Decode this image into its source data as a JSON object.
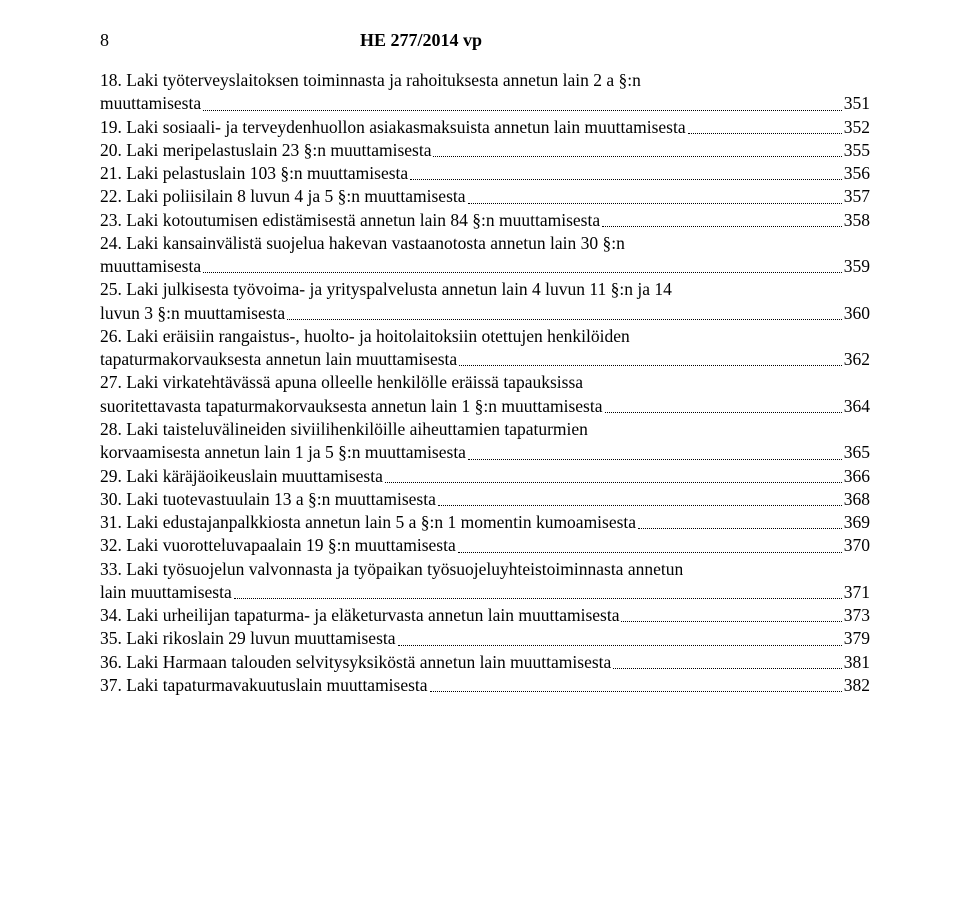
{
  "header": {
    "page_number": "8",
    "doc_title": "HE 277/2014 vp"
  },
  "toc": [
    {
      "lines": [
        "18. Laki työterveyslaitoksen toiminnasta ja rahoituksesta annetun lain 2 a §:n",
        "muuttamisesta"
      ],
      "page": "351"
    },
    {
      "lines": [
        "19. Laki sosiaali- ja terveydenhuollon asiakasmaksuista annetun lain muuttamisesta"
      ],
      "page": "352"
    },
    {
      "lines": [
        "20. Laki meripelastuslain 23 §:n muuttamisesta"
      ],
      "page": "355"
    },
    {
      "lines": [
        "21. Laki pelastuslain 103 §:n muuttamisesta"
      ],
      "page": "356"
    },
    {
      "lines": [
        "22. Laki poliisilain 8 luvun 4 ja 5 §:n muuttamisesta"
      ],
      "page": "357"
    },
    {
      "lines": [
        "23. Laki kotoutumisen edistämisestä annetun lain 84 §:n muuttamisesta"
      ],
      "page": "358"
    },
    {
      "lines": [
        "24. Laki kansainvälistä suojelua hakevan vastaanotosta annetun lain 30 §:n",
        "muuttamisesta"
      ],
      "page": "359"
    },
    {
      "lines": [
        "25. Laki julkisesta työvoima- ja yrityspalvelusta annetun lain 4 luvun 11 §:n ja 14",
        "luvun 3 §:n muuttamisesta"
      ],
      "page": "360"
    },
    {
      "lines": [
        "26. Laki eräisiin rangaistus-, huolto- ja hoitolaitoksiin otettujen henkilöiden",
        "tapaturmakorvauksesta annetun lain muuttamisesta"
      ],
      "page": "362"
    },
    {
      "lines": [
        "27. Laki virkatehtävässä apuna olleelle henkilölle eräissä tapauksissa",
        "suoritettavasta tapaturmakorvauksesta annetun lain 1 §:n muuttamisesta"
      ],
      "page": "364"
    },
    {
      "lines": [
        "28. Laki taisteluvälineiden siviilihenkilöille aiheuttamien tapaturmien",
        "korvaamisesta annetun lain 1 ja 5 §:n muuttamisesta"
      ],
      "page": "365"
    },
    {
      "lines": [
        "29. Laki käräjäoikeuslain muuttamisesta"
      ],
      "page": "366"
    },
    {
      "lines": [
        "30. Laki tuotevastuulain 13 a §:n muuttamisesta"
      ],
      "page": "368"
    },
    {
      "lines": [
        "31. Laki edustajanpalkkiosta annetun lain 5 a §:n 1 momentin kumoamisesta"
      ],
      "page": "369"
    },
    {
      "lines": [
        "32. Laki vuorotteluvapaalain 19 §:n muuttamisesta"
      ],
      "page": "370"
    },
    {
      "lines": [
        "33. Laki työsuojelun valvonnasta ja työpaikan työsuojeluyhteistoiminnasta annetun",
        "lain muuttamisesta"
      ],
      "page": "371"
    },
    {
      "lines": [
        "34. Laki urheilijan tapaturma- ja eläketurvasta annetun lain muuttamisesta"
      ],
      "page": "373"
    },
    {
      "lines": [
        "35. Laki rikoslain 29 luvun muuttamisesta"
      ],
      "page": "379"
    },
    {
      "lines": [
        "36. Laki Harmaan talouden selvitysyksiköstä annetun lain muuttamisesta"
      ],
      "page": "381"
    },
    {
      "lines": [
        "37. Laki tapaturmavakuutuslain muuttamisesta"
      ],
      "page": "382"
    }
  ]
}
